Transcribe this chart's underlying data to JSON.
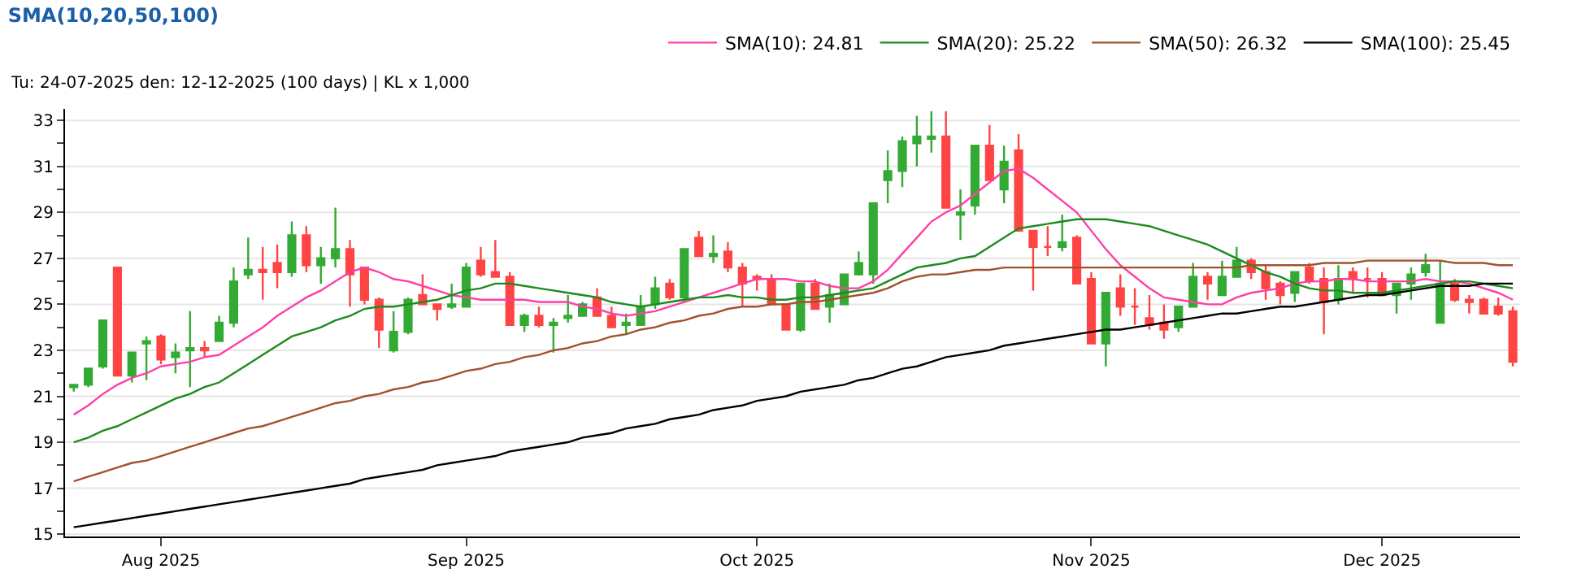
{
  "chart_data": {
    "type": "candlestick",
    "title": "SMA(10,20,50,100)",
    "subtitle": "Tu: 24-07-2025 den: 12-12-2025 (100 days) | KL x 1,000",
    "categories": [
      null,
      null,
      null,
      null,
      null,
      null,
      "Aug 2025",
      null,
      null,
      null,
      null,
      null,
      null,
      null,
      null,
      null,
      null,
      null,
      null,
      null,
      null,
      null,
      null,
      null,
      null,
      null,
      null,
      "Sep 2025",
      null,
      null,
      null,
      null,
      null,
      null,
      null,
      null,
      null,
      null,
      null,
      null,
      null,
      null,
      null,
      null,
      null,
      null,
      null,
      "Oct 2025",
      null,
      null,
      null,
      null,
      null,
      null,
      null,
      null,
      null,
      null,
      null,
      null,
      null,
      null,
      null,
      null,
      null,
      null,
      null,
      null,
      null,
      null,
      "Nov 2025",
      null,
      null,
      null,
      null,
      null,
      null,
      null,
      null,
      null,
      null,
      null,
      null,
      null,
      null,
      null,
      null,
      null,
      null,
      null,
      "Dec 2025",
      null,
      null,
      null,
      null,
      null,
      null,
      null,
      null,
      null
    ],
    "ohlc": [
      [
        21.4,
        21.5,
        21.2,
        21.5
      ],
      [
        21.5,
        22.2,
        21.4,
        22.2
      ],
      [
        22.3,
        24.3,
        22.2,
        24.3
      ],
      [
        26.6,
        26.6,
        21.9,
        21.9
      ],
      [
        21.9,
        22.9,
        21.6,
        22.9
      ],
      [
        23.3,
        23.6,
        21.7,
        23.4
      ],
      [
        23.6,
        23.7,
        22.4,
        22.6
      ],
      [
        22.7,
        23.3,
        22.0,
        22.9
      ],
      [
        23.0,
        24.7,
        21.4,
        23.1
      ],
      [
        23.1,
        23.4,
        22.7,
        23.0
      ],
      [
        23.4,
        24.5,
        23.4,
        24.2
      ],
      [
        24.2,
        26.6,
        24.0,
        26.0
      ],
      [
        26.3,
        27.9,
        26.1,
        26.5
      ],
      [
        26.5,
        27.5,
        25.2,
        26.4
      ],
      [
        26.8,
        27.6,
        25.7,
        26.4
      ],
      [
        26.4,
        28.6,
        26.2,
        28.0
      ],
      [
        28.0,
        28.4,
        26.4,
        26.7
      ],
      [
        26.7,
        27.5,
        25.9,
        27.0
      ],
      [
        27.0,
        29.2,
        26.6,
        27.4
      ],
      [
        27.4,
        27.8,
        24.9,
        26.3
      ],
      [
        26.6,
        26.6,
        25.0,
        25.2
      ],
      [
        25.2,
        25.3,
        23.1,
        23.9
      ],
      [
        23.0,
        24.7,
        22.9,
        23.8
      ],
      [
        23.8,
        25.3,
        23.7,
        25.2
      ],
      [
        25.4,
        26.3,
        25.0,
        25.0
      ],
      [
        25.0,
        25.0,
        24.3,
        24.8
      ],
      [
        24.9,
        25.9,
        24.8,
        25.0
      ],
      [
        24.9,
        26.8,
        24.9,
        26.6
      ],
      [
        26.9,
        27.5,
        26.2,
        26.3
      ],
      [
        26.4,
        27.8,
        26.2,
        26.2
      ],
      [
        26.2,
        26.4,
        24.1,
        24.1
      ],
      [
        24.1,
        24.6,
        23.8,
        24.5
      ],
      [
        24.5,
        24.9,
        24.0,
        24.1
      ],
      [
        24.1,
        24.4,
        22.9,
        24.2
      ],
      [
        24.4,
        25.4,
        24.2,
        24.5
      ],
      [
        24.5,
        25.1,
        24.5,
        25.0
      ],
      [
        25.3,
        25.7,
        24.5,
        24.5
      ],
      [
        24.5,
        24.9,
        24.0,
        24.0
      ],
      [
        24.1,
        24.6,
        23.7,
        24.2
      ],
      [
        24.1,
        25.4,
        24.1,
        24.9
      ],
      [
        25.0,
        26.2,
        24.8,
        25.7
      ],
      [
        25.9,
        26.1,
        25.2,
        25.3
      ],
      [
        25.3,
        27.4,
        25.1,
        27.4
      ],
      [
        27.9,
        28.2,
        27.1,
        27.1
      ],
      [
        27.1,
        28.0,
        26.8,
        27.2
      ],
      [
        27.3,
        27.7,
        26.4,
        26.6
      ],
      [
        26.6,
        26.8,
        24.9,
        25.9
      ],
      [
        26.2,
        26.3,
        25.6,
        26.1
      ],
      [
        26.1,
        26.3,
        25.0,
        25.0
      ],
      [
        25.0,
        25.0,
        23.9,
        23.9
      ],
      [
        23.9,
        25.9,
        23.8,
        25.9
      ],
      [
        25.9,
        26.1,
        24.8,
        24.8
      ],
      [
        24.9,
        25.9,
        24.2,
        25.4
      ],
      [
        25.0,
        26.3,
        25.0,
        26.3
      ],
      [
        26.3,
        27.3,
        26.3,
        26.8
      ],
      [
        26.3,
        29.4,
        25.9,
        29.4
      ],
      [
        30.4,
        31.7,
        29.4,
        30.8
      ],
      [
        30.8,
        32.3,
        30.1,
        32.1
      ],
      [
        32.0,
        33.2,
        31.0,
        32.3
      ],
      [
        32.2,
        33.4,
        31.6,
        32.3
      ],
      [
        32.3,
        33.4,
        29.2,
        29.2
      ],
      [
        28.9,
        30.0,
        27.8,
        29.0
      ],
      [
        29.3,
        31.9,
        28.9,
        31.9
      ],
      [
        31.9,
        32.8,
        30.4,
        30.4
      ],
      [
        30.0,
        31.9,
        29.4,
        31.2
      ],
      [
        31.7,
        32.4,
        28.2,
        28.2
      ],
      [
        28.2,
        28.2,
        25.6,
        27.5
      ],
      [
        27.5,
        28.4,
        27.1,
        27.5
      ],
      [
        27.5,
        28.9,
        27.3,
        27.7
      ],
      [
        27.9,
        28.0,
        25.9,
        25.9
      ],
      [
        26.1,
        26.4,
        23.3,
        23.3
      ],
      [
        23.3,
        25.5,
        22.3,
        25.5
      ],
      [
        25.7,
        26.3,
        24.5,
        24.9
      ],
      [
        24.9,
        25.7,
        24.1,
        24.9
      ],
      [
        24.4,
        25.4,
        23.9,
        24.1
      ],
      [
        24.2,
        25.0,
        23.5,
        23.9
      ],
      [
        24.0,
        24.9,
        23.8,
        24.9
      ],
      [
        24.9,
        26.8,
        24.9,
        26.2
      ],
      [
        26.2,
        26.4,
        25.2,
        25.9
      ],
      [
        25.4,
        26.9,
        25.4,
        26.2
      ],
      [
        26.2,
        27.5,
        26.2,
        26.9
      ],
      [
        26.9,
        27.0,
        26.1,
        26.4
      ],
      [
        26.4,
        26.7,
        25.2,
        25.7
      ],
      [
        25.9,
        26.0,
        25.0,
        25.4
      ],
      [
        25.5,
        26.4,
        25.1,
        26.4
      ],
      [
        26.6,
        26.8,
        25.9,
        26.0
      ],
      [
        26.1,
        26.6,
        23.7,
        25.1
      ],
      [
        25.2,
        26.7,
        25.0,
        26.1
      ],
      [
        26.4,
        26.6,
        25.5,
        26.1
      ],
      [
        26.1,
        26.6,
        25.3,
        26.1
      ],
      [
        26.1,
        26.4,
        25.4,
        25.4
      ],
      [
        25.4,
        25.9,
        24.6,
        25.9
      ],
      [
        25.9,
        26.6,
        25.2,
        26.3
      ],
      [
        26.4,
        27.2,
        26.2,
        26.7
      ],
      [
        24.2,
        26.9,
        24.2,
        25.9
      ],
      [
        25.9,
        26.1,
        25.1,
        25.2
      ],
      [
        25.2,
        25.4,
        24.6,
        25.1
      ],
      [
        25.2,
        25.3,
        24.6,
        24.6
      ],
      [
        24.9,
        25.3,
        24.5,
        24.6
      ],
      [
        24.7,
        24.9,
        22.3,
        22.5
      ]
    ],
    "series": [
      {
        "type": "line",
        "name": "SMA(10): 24.81",
        "color": "#ff3fa6",
        "values": [
          20.2,
          20.6,
          21.1,
          21.5,
          21.8,
          22.0,
          22.3,
          22.4,
          22.5,
          22.7,
          22.8,
          23.2,
          23.6,
          24.0,
          24.5,
          24.9,
          25.3,
          25.6,
          26.0,
          26.4,
          26.6,
          26.4,
          26.1,
          26.0,
          25.8,
          25.6,
          25.4,
          25.3,
          25.2,
          25.2,
          25.2,
          25.2,
          25.1,
          25.1,
          25.1,
          24.9,
          24.8,
          24.6,
          24.5,
          24.6,
          24.7,
          24.9,
          25.1,
          25.3,
          25.5,
          25.7,
          25.9,
          26.1,
          26.1,
          26.1,
          26.0,
          26.0,
          25.8,
          25.7,
          25.7,
          26.0,
          26.5,
          27.2,
          27.9,
          28.6,
          29.0,
          29.3,
          29.8,
          30.3,
          30.8,
          30.9,
          30.5,
          30.0,
          29.5,
          29.0,
          28.2,
          27.4,
          26.7,
          26.2,
          25.7,
          25.3,
          25.2,
          25.1,
          25.0,
          25.0,
          25.3,
          25.5,
          25.6,
          25.7,
          25.9,
          26.0,
          26.0,
          26.1,
          26.1,
          26.0,
          26.0,
          26.0,
          26.0,
          26.1,
          26.0,
          26.0,
          25.9,
          25.7,
          25.5,
          25.2
        ]
      },
      {
        "type": "line",
        "name": "SMA(20): 25.22",
        "color": "#1e8a1e",
        "values": [
          19.0,
          19.2,
          19.5,
          19.7,
          20.0,
          20.3,
          20.6,
          20.9,
          21.1,
          21.4,
          21.6,
          22.0,
          22.4,
          22.8,
          23.2,
          23.6,
          23.8,
          24.0,
          24.3,
          24.5,
          24.8,
          24.9,
          24.9,
          25.0,
          25.1,
          25.2,
          25.4,
          25.6,
          25.7,
          25.9,
          25.9,
          25.8,
          25.7,
          25.6,
          25.5,
          25.4,
          25.3,
          25.1,
          25.0,
          24.9,
          25.0,
          25.1,
          25.2,
          25.3,
          25.3,
          25.4,
          25.3,
          25.3,
          25.2,
          25.2,
          25.3,
          25.3,
          25.4,
          25.5,
          25.6,
          25.7,
          26.0,
          26.3,
          26.6,
          26.7,
          26.8,
          27.0,
          27.1,
          27.5,
          27.9,
          28.3,
          28.4,
          28.5,
          28.6,
          28.7,
          28.7,
          28.7,
          28.6,
          28.5,
          28.4,
          28.2,
          28.0,
          27.8,
          27.6,
          27.3,
          27.0,
          26.7,
          26.4,
          26.2,
          25.9,
          25.7,
          25.6,
          25.6,
          25.5,
          25.5,
          25.5,
          25.6,
          25.7,
          25.8,
          25.9,
          26.0,
          26.0,
          25.9,
          25.8,
          25.7
        ]
      },
      {
        "type": "line",
        "name": "SMA(50): 26.32",
        "color": "#a0522d",
        "values": [
          17.3,
          17.5,
          17.7,
          17.9,
          18.1,
          18.2,
          18.4,
          18.6,
          18.8,
          19.0,
          19.2,
          19.4,
          19.6,
          19.7,
          19.9,
          20.1,
          20.3,
          20.5,
          20.7,
          20.8,
          21.0,
          21.1,
          21.3,
          21.4,
          21.6,
          21.7,
          21.9,
          22.1,
          22.2,
          22.4,
          22.5,
          22.7,
          22.8,
          23.0,
          23.1,
          23.3,
          23.4,
          23.6,
          23.7,
          23.9,
          24.0,
          24.2,
          24.3,
          24.5,
          24.6,
          24.8,
          24.9,
          24.9,
          25.0,
          25.0,
          25.1,
          25.1,
          25.2,
          25.3,
          25.4,
          25.5,
          25.7,
          26.0,
          26.2,
          26.3,
          26.3,
          26.4,
          26.5,
          26.5,
          26.6,
          26.6,
          26.6,
          26.6,
          26.6,
          26.6,
          26.6,
          26.6,
          26.6,
          26.6,
          26.6,
          26.6,
          26.6,
          26.6,
          26.6,
          26.6,
          26.6,
          26.7,
          26.7,
          26.7,
          26.7,
          26.7,
          26.8,
          26.8,
          26.8,
          26.9,
          26.9,
          26.9,
          26.9,
          26.9,
          26.9,
          26.8,
          26.8,
          26.8,
          26.7,
          26.7
        ]
      },
      {
        "type": "line",
        "name": "SMA(100): 25.45",
        "color": "#000000",
        "values": [
          15.3,
          15.4,
          15.5,
          15.6,
          15.7,
          15.8,
          15.9,
          16.0,
          16.1,
          16.2,
          16.3,
          16.4,
          16.5,
          16.6,
          16.7,
          16.8,
          16.9,
          17.0,
          17.1,
          17.2,
          17.4,
          17.5,
          17.6,
          17.7,
          17.8,
          18.0,
          18.1,
          18.2,
          18.3,
          18.4,
          18.6,
          18.7,
          18.8,
          18.9,
          19.0,
          19.2,
          19.3,
          19.4,
          19.6,
          19.7,
          19.8,
          20.0,
          20.1,
          20.2,
          20.4,
          20.5,
          20.6,
          20.8,
          20.9,
          21.0,
          21.2,
          21.3,
          21.4,
          21.5,
          21.7,
          21.8,
          22.0,
          22.2,
          22.3,
          22.5,
          22.7,
          22.8,
          22.9,
          23.0,
          23.2,
          23.3,
          23.4,
          23.5,
          23.6,
          23.7,
          23.8,
          23.9,
          23.9,
          24.0,
          24.1,
          24.2,
          24.3,
          24.4,
          24.5,
          24.6,
          24.6,
          24.7,
          24.8,
          24.9,
          24.9,
          25.0,
          25.1,
          25.2,
          25.3,
          25.4,
          25.4,
          25.5,
          25.6,
          25.7,
          25.8,
          25.8,
          25.8,
          25.9,
          25.9,
          25.9
        ]
      }
    ],
    "ylim": [
      14.9,
      33.5
    ],
    "yticks": [
      15,
      {
        "value": 16,
        "label": null
      },
      17,
      {
        "value": 18,
        "label": null
      },
      19,
      {
        "value": 20,
        "label": null
      },
      21,
      {
        "value": 22,
        "label": null
      },
      23,
      {
        "value": 24,
        "label": null
      },
      25,
      {
        "value": 26,
        "label": null
      },
      27,
      {
        "value": 28,
        "label": null
      },
      29,
      {
        "value": 30,
        "label": null
      },
      31,
      {
        "value": 32,
        "label": null
      },
      33
    ],
    "grid": "y",
    "legend": "top right"
  }
}
